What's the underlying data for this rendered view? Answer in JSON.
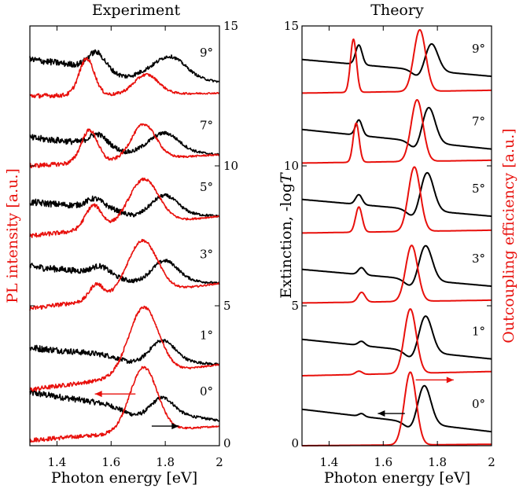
{
  "colors": {
    "experiment_red": "#e8100c",
    "measurement_black": "#000000"
  },
  "chart_data": [
    {
      "type": "line",
      "title": "Experiment",
      "xlabel": "Photon energy [eV]",
      "ylabel": "PL intensity [a.u.]",
      "right_axis_ticks": [
        "0",
        "5",
        "10",
        "15"
      ],
      "xlim": [
        1.3,
        2.0
      ],
      "ylim": [
        0,
        15
      ],
      "x_ticks": [
        "1.4",
        "1.6",
        "1.8",
        "2"
      ],
      "grid": false,
      "angle_labels": [
        "0°",
        "1°",
        "3°",
        "5°",
        "7°",
        "9°"
      ],
      "arrows": {
        "red": "left",
        "black": "right"
      },
      "traces": [
        {
          "angle": "0°",
          "black": {
            "start": 1.9,
            "base_end": 0.9,
            "peaks": [
              {
                "x": 1.79,
                "a": 0.55,
                "w": 0.04
              }
            ],
            "dip": {
              "x": 1.69,
              "a": 0.25,
              "w": 0.05
            }
          },
          "red": {
            "start": 0.2,
            "base_end": 0.7,
            "peaks": [
              {
                "x": 1.72,
                "a": 2.3,
                "w": 0.05
              }
            ]
          }
        },
        {
          "angle": "1°",
          "black": {
            "start": 3.5,
            "base_end": 2.9,
            "peaks": [
              {
                "x": 1.79,
                "a": 0.7,
                "w": 0.045
              }
            ],
            "dip": {
              "x": 1.68,
              "a": 0.2,
              "w": 0.05
            }
          },
          "red": {
            "start": 2.0,
            "base_end": 2.9,
            "peaks": [
              {
                "x": 1.72,
                "a": 2.4,
                "w": 0.055
              }
            ]
          }
        },
        {
          "angle": "3°",
          "black": {
            "start": 6.4,
            "base_end": 5.8,
            "peaks": [
              {
                "x": 1.8,
                "a": 0.65,
                "w": 0.045
              },
              {
                "x": 1.56,
                "a": 0.25,
                "w": 0.03
              }
            ],
            "dip": {
              "x": 1.68,
              "a": 0.2,
              "w": 0.05
            }
          },
          "red": {
            "start": 4.9,
            "base_end": 5.8,
            "peaks": [
              {
                "x": 1.715,
                "a": 1.9,
                "w": 0.055
              },
              {
                "x": 1.545,
                "a": 0.55,
                "w": 0.025
              }
            ]
          }
        },
        {
          "angle": "5°",
          "black": {
            "start": 8.7,
            "base_end": 8.2,
            "peaks": [
              {
                "x": 1.8,
                "a": 0.6,
                "w": 0.045
              },
              {
                "x": 1.54,
                "a": 0.3,
                "w": 0.03
              }
            ],
            "dip": {
              "x": 1.68,
              "a": 0.2,
              "w": 0.04
            }
          },
          "red": {
            "start": 7.5,
            "base_end": 8.2,
            "peaks": [
              {
                "x": 1.72,
                "a": 1.6,
                "w": 0.055
              },
              {
                "x": 1.535,
                "a": 0.85,
                "w": 0.03
              }
            ]
          }
        },
        {
          "angle": "7°",
          "black": {
            "start": 11.0,
            "base_end": 10.4,
            "peaks": [
              {
                "x": 1.8,
                "a": 0.6,
                "w": 0.05
              },
              {
                "x": 1.55,
                "a": 0.35,
                "w": 0.03
              }
            ],
            "dip": {
              "x": 1.66,
              "a": 0.2,
              "w": 0.04
            }
          },
          "red": {
            "start": 10.0,
            "base_end": 10.4,
            "peaks": [
              {
                "x": 1.72,
                "a": 1.25,
                "w": 0.045
              },
              {
                "x": 1.52,
                "a": 1.15,
                "w": 0.03
              }
            ]
          }
        },
        {
          "angle": "9°",
          "black": {
            "start": 13.8,
            "base_end": 13.0,
            "peaks": [
              {
                "x": 1.82,
                "a": 0.7,
                "w": 0.055
              },
              {
                "x": 1.545,
                "a": 0.55,
                "w": 0.03
              }
            ],
            "dip": {
              "x": 1.65,
              "a": 0.2,
              "w": 0.04
            }
          },
          "red": {
            "start": 12.5,
            "base_end": 12.6,
            "peaks": [
              {
                "x": 1.73,
                "a": 0.7,
                "w": 0.045
              },
              {
                "x": 1.51,
                "a": 1.3,
                "w": 0.028
              }
            ]
          }
        }
      ]
    },
    {
      "type": "line",
      "title": "Theory",
      "xlabel": "Photon energy [eV]",
      "ylabel": "Extinction, -log",
      "ylabel_italic": "T",
      "right_ylabel": "Outcoupling efficiency [a.u.]",
      "xlim": [
        1.3,
        2.0
      ],
      "ylim": [
        0,
        15
      ],
      "x_ticks": [
        "1.4",
        "1.6",
        "1.8",
        "2"
      ],
      "y_ticks": [
        "0",
        "5",
        "10",
        "15"
      ],
      "grid": false,
      "angle_labels": [
        "0°",
        "1°",
        "3°",
        "5°",
        "7°",
        "9°"
      ],
      "arrows": {
        "red": "right",
        "black": "left"
      },
      "traces": [
        {
          "angle": "0°",
          "black": {
            "start": 1.3,
            "base_end": 0.5,
            "peaks": [
              {
                "x": 1.75,
                "a": 1.45,
                "w": 0.025
              },
              {
                "x": 1.52,
                "a": 0.1,
                "w": 0.01
              }
            ],
            "dip": {
              "x": 1.71,
              "a": 0.35,
              "w": 0.025
            }
          },
          "red": {
            "start": 0.0,
            "base_end": 0.05,
            "peaks": [
              {
                "x": 1.7,
                "a": 2.6,
                "w": 0.022
              }
            ]
          }
        },
        {
          "angle": "1°",
          "black": {
            "start": 3.8,
            "base_end": 3.1,
            "peaks": [
              {
                "x": 1.755,
                "a": 1.35,
                "w": 0.025
              },
              {
                "x": 1.52,
                "a": 0.15,
                "w": 0.012
              }
            ],
            "dip": {
              "x": 1.71,
              "a": 0.35,
              "w": 0.025
            }
          },
          "red": {
            "start": 2.5,
            "base_end": 2.65,
            "peaks": [
              {
                "x": 1.7,
                "a": 2.3,
                "w": 0.022
              },
              {
                "x": 1.51,
                "a": 0.12,
                "w": 0.012
              }
            ]
          }
        },
        {
          "angle": "3°",
          "black": {
            "start": 6.3,
            "base_end": 5.7,
            "peaks": [
              {
                "x": 1.755,
                "a": 1.3,
                "w": 0.025
              },
              {
                "x": 1.52,
                "a": 0.25,
                "w": 0.012
              }
            ],
            "dip": {
              "x": 1.71,
              "a": 0.35,
              "w": 0.025
            }
          },
          "red": {
            "start": 5.1,
            "base_end": 5.2,
            "peaks": [
              {
                "x": 1.705,
                "a": 2.0,
                "w": 0.022
              },
              {
                "x": 1.52,
                "a": 0.35,
                "w": 0.013
              }
            ]
          }
        },
        {
          "angle": "5°",
          "black": {
            "start": 8.8,
            "base_end": 8.2,
            "peaks": [
              {
                "x": 1.76,
                "a": 1.45,
                "w": 0.025
              },
              {
                "x": 1.51,
                "a": 0.35,
                "w": 0.012
              }
            ],
            "dip": {
              "x": 1.72,
              "a": 0.4,
              "w": 0.025
            }
          },
          "red": {
            "start": 7.6,
            "base_end": 7.7,
            "peaks": [
              {
                "x": 1.715,
                "a": 2.3,
                "w": 0.022
              },
              {
                "x": 1.51,
                "a": 0.9,
                "w": 0.012
              }
            ]
          }
        },
        {
          "angle": "7°",
          "black": {
            "start": 11.3,
            "base_end": 10.6,
            "peaks": [
              {
                "x": 1.765,
                "a": 1.4,
                "w": 0.025
              },
              {
                "x": 1.51,
                "a": 0.55,
                "w": 0.012
              }
            ],
            "dip": {
              "x": 1.73,
              "a": 0.45,
              "w": 0.025
            }
          },
          "red": {
            "start": 10.1,
            "base_end": 10.2,
            "peaks": [
              {
                "x": 1.725,
                "a": 2.2,
                "w": 0.022
              },
              {
                "x": 1.5,
                "a": 1.4,
                "w": 0.011
              }
            ]
          }
        },
        {
          "angle": "9°",
          "black": {
            "start": 13.8,
            "base_end": 13.2,
            "peaks": [
              {
                "x": 1.775,
                "a": 1.1,
                "w": 0.025
              },
              {
                "x": 1.51,
                "a": 0.7,
                "w": 0.012
              }
            ],
            "dip": {
              "x": 1.74,
              "a": 0.4,
              "w": 0.025
            }
          },
          "red": {
            "start": 12.6,
            "base_end": 12.7,
            "peaks": [
              {
                "x": 1.735,
                "a": 2.2,
                "w": 0.022
              },
              {
                "x": 1.49,
                "a": 1.9,
                "w": 0.011
              }
            ]
          }
        }
      ]
    }
  ]
}
